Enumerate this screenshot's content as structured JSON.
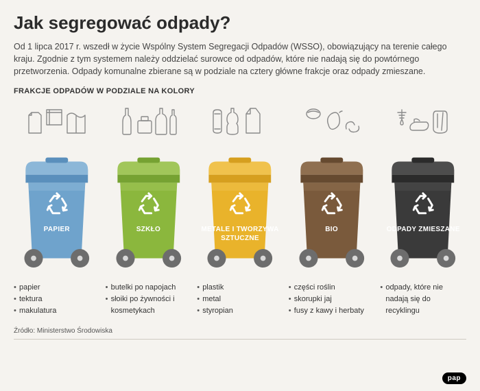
{
  "page": {
    "title": "Jak segregować odpady?",
    "intro": "Od 1 lipca 2017 r. wszedł w życie Wspólny System Segregacji Odpadów (WSSO), obowiązujący na terenie całego kraju. Zgodnie z tym systemem należy oddzielać surowce od odpadów, które nie nadają się do powtórnego przetworzenia. Odpady komunalne zbierane są w podziale na cztery główne frakcje oraz odpady zmieszane.",
    "subhead": "FRAKCJE ODPADÓW W PODZIALE NA KOLORY",
    "source": "Źródło: Ministerstwo Środowiska",
    "badge": "pap"
  },
  "style": {
    "background_color": "#f5f3ef",
    "title_fontsize": 26,
    "intro_fontsize": 12.5,
    "subhead_fontsize": 11,
    "item_fontsize": 11,
    "icon_stroke": "#8a8a8a",
    "wheel_fill": "#6d6d6d",
    "wheel_hub": "#d9d9d9",
    "recycle_mark": "#ffffff"
  },
  "bins": [
    {
      "label": "PAPIER",
      "color": "#6fa3cc",
      "color_light": "#8cb7d8",
      "color_dark": "#5a8fbc",
      "items": [
        "papier",
        "tektura",
        "makulatura"
      ],
      "icon_set": "paper"
    },
    {
      "label": "SZKŁO",
      "color": "#8bb73d",
      "color_light": "#a1c65a",
      "color_dark": "#76a232",
      "items": [
        "butelki po napojach",
        "słoiki po żywności i kosmetykach"
      ],
      "icon_set": "glass"
    },
    {
      "label": "METALE I TWORZYWA SZTUCZNE",
      "color": "#e9b32b",
      "color_light": "#f0c24d",
      "color_dark": "#d69f1f",
      "items": [
        "plastik",
        "metal",
        "styropian"
      ],
      "icon_set": "plastic"
    },
    {
      "label": "BIO",
      "color": "#7a5a3c",
      "color_light": "#8f6f50",
      "color_dark": "#664a30",
      "items": [
        "części roślin",
        "skorupki jaj",
        "fusy z kawy i herbaty"
      ],
      "icon_set": "bio"
    },
    {
      "label": "ODPADY ZMIESZANE",
      "color": "#3a3a3a",
      "color_light": "#4d4d4d",
      "color_dark": "#2b2b2b",
      "items": [
        "odpady, które nie nadają się do recyklingu"
      ],
      "icon_set": "mixed"
    }
  ]
}
